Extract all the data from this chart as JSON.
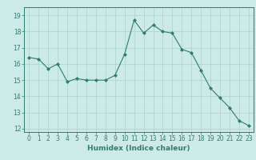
{
  "x": [
    0,
    1,
    2,
    3,
    4,
    5,
    6,
    7,
    8,
    9,
    10,
    11,
    12,
    13,
    14,
    15,
    16,
    17,
    18,
    19,
    20,
    21,
    22,
    23
  ],
  "y": [
    16.4,
    16.3,
    15.7,
    16.0,
    14.9,
    15.1,
    15.0,
    15.0,
    15.0,
    15.3,
    16.6,
    18.7,
    17.9,
    18.4,
    18.0,
    17.9,
    16.9,
    16.7,
    15.6,
    14.5,
    13.9,
    13.3,
    12.5,
    12.2
  ],
  "line_color": "#2e7d6e",
  "marker": "D",
  "marker_size": 2,
  "bg_color": "#cceae7",
  "grid_color": "#aad3ce",
  "xlabel": "Humidex (Indice chaleur)",
  "ylim": [
    11.8,
    19.5
  ],
  "xlim": [
    -0.5,
    23.5
  ],
  "yticks": [
    12,
    13,
    14,
    15,
    16,
    17,
    18,
    19
  ],
  "xticks": [
    0,
    1,
    2,
    3,
    4,
    5,
    6,
    7,
    8,
    9,
    10,
    11,
    12,
    13,
    14,
    15,
    16,
    17,
    18,
    19,
    20,
    21,
    22,
    23
  ],
  "tick_color": "#2e7d6e",
  "label_fontsize": 6.5,
  "tick_fontsize": 5.5,
  "spine_color": "#2e7d6e"
}
